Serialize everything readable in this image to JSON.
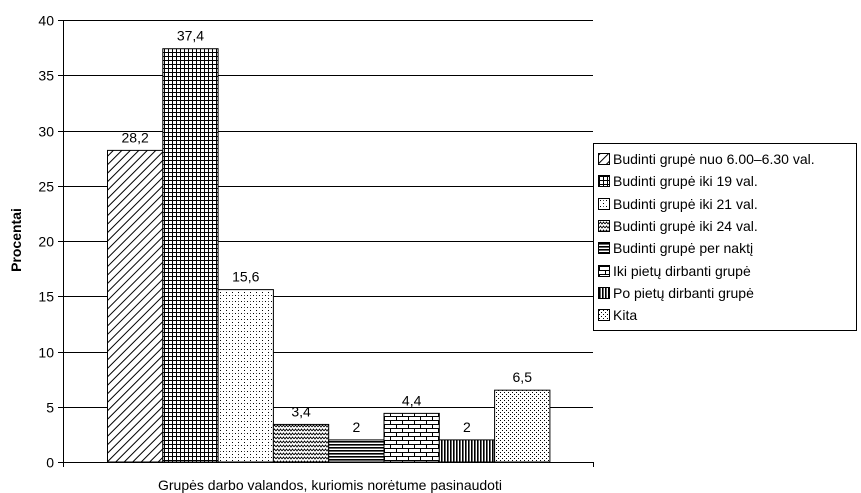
{
  "chart_data": {
    "type": "bar",
    "title": "",
    "xlabel": "Grupės darbo valandos, kuriomis norėtume pasinaudoti",
    "ylabel": "Procentai",
    "ylim": [
      0,
      40
    ],
    "yticks": [
      "0",
      "5",
      "10",
      "15",
      "20",
      "25",
      "30",
      "35",
      "40"
    ],
    "grid": true,
    "legend_position": "right",
    "series": [
      {
        "name": "Budinti grupė nuo 6.00–6.30 val.",
        "value": 28.2,
        "label": "28,2",
        "pattern": "diagonal"
      },
      {
        "name": "Budinti grupė iki 19 val.",
        "value": 37.4,
        "label": "37,4",
        "pattern": "grid"
      },
      {
        "name": "Budinti grupė iki 21 val.",
        "value": 15.6,
        "label": "15,6",
        "pattern": "dots"
      },
      {
        "name": "Budinti grupė iki 24 val.",
        "value": 3.4,
        "label": "3,4",
        "pattern": "wave"
      },
      {
        "name": "Budinti grupė per naktį",
        "value": 2,
        "label": "2",
        "pattern": "hlines"
      },
      {
        "name": "Iki pietų dirbanti grupė",
        "value": 4.4,
        "label": "4,4",
        "pattern": "bricks"
      },
      {
        "name": "Po pietų dirbanti grupė",
        "value": 2,
        "label": "2",
        "pattern": "vlines"
      },
      {
        "name": "Kita",
        "value": 6.5,
        "label": "6,5",
        "pattern": "dense-dots"
      }
    ]
  }
}
